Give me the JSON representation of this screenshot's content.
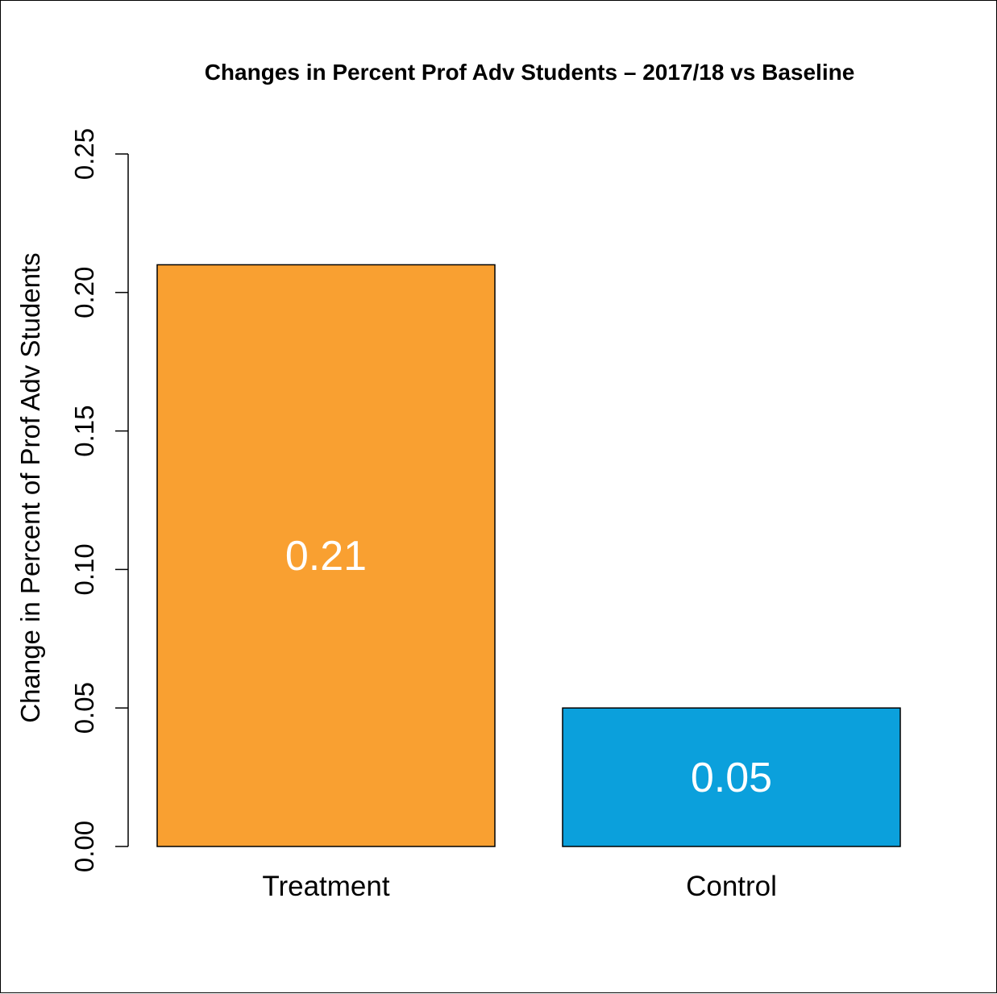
{
  "chart_data": {
    "type": "bar",
    "title": "Changes in Percent Prof Adv Students – 2017/18 vs Baseline",
    "xlabel": "",
    "ylabel": "Change in Percent of Prof Adv Students",
    "categories": [
      "Treatment",
      "Control"
    ],
    "values": [
      0.21,
      0.05
    ],
    "data_labels": [
      "0.21",
      "0.05"
    ],
    "bar_colors": [
      "#F9A031",
      "#0BA0DC"
    ],
    "ylim": [
      0,
      0.25
    ],
    "yticks": [
      0.0,
      0.05,
      0.1,
      0.15,
      0.2,
      0.25
    ],
    "ytick_labels": [
      "0.00",
      "0.05",
      "0.10",
      "0.15",
      "0.20",
      "0.25"
    ],
    "grid": false,
    "legend": "none"
  }
}
